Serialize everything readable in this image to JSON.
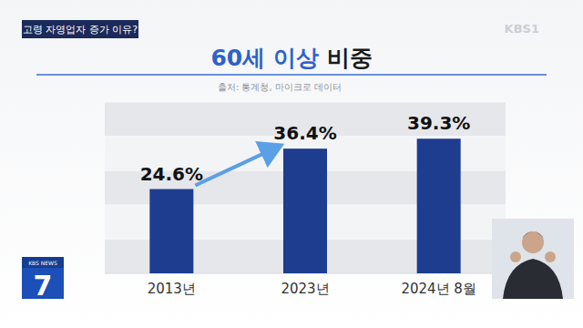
{
  "header": {
    "topic": "고령 자영업자 증가 이유?",
    "channel": "KBS1"
  },
  "program": {
    "name": "KBS NEWS",
    "number": "7"
  },
  "chart_data": {
    "type": "bar",
    "title": "60세 이상 비중",
    "subtitle": "출처: 통계청, 마이크로 데이터",
    "categories": [
      "2013년",
      "2023년",
      "2024년 8월"
    ],
    "values": [
      24.6,
      36.4,
      39.3
    ],
    "value_labels": [
      "24.6%",
      "36.4%",
      "39.3%"
    ],
    "color": "#1e3d8f",
    "ylim": [
      0,
      50
    ],
    "yticks": [
      0,
      10,
      20,
      30,
      40,
      50
    ],
    "grid": true,
    "data_labels": true,
    "tick_labels": "x"
  }
}
